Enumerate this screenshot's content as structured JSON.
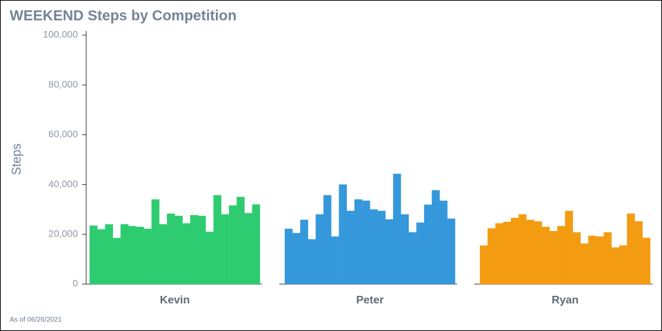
{
  "chart_data": {
    "type": "bar",
    "title": "WEEKEND Steps by Competition",
    "y_label": "Steps",
    "footnote": "As of 06/26/2021",
    "ylim": [
      0,
      100000
    ],
    "yticks": [
      0,
      {
        "value": 20000,
        "label": "20,000"
      },
      {
        "value": 40000,
        "label": "40,000"
      },
      {
        "value": 60000,
        "label": "60,000"
      },
      {
        "value": 80000,
        "label": "80,000"
      },
      {
        "value": 100000,
        "label": "100,000"
      }
    ],
    "series": [
      {
        "name": "Kevin",
        "color": "#2ecc71",
        "values": [
          23500,
          22000,
          24000,
          18500,
          24000,
          23300,
          23000,
          22200,
          34000,
          24000,
          28300,
          27400,
          24400,
          27700,
          27400,
          21000,
          35700,
          28000,
          31600,
          35000,
          28500,
          32000
        ]
      },
      {
        "name": "Peter",
        "color": "#3498db",
        "values": [
          22200,
          20500,
          25800,
          18000,
          28000,
          35700,
          19100,
          40000,
          29400,
          34000,
          33500,
          30000,
          29400,
          26000,
          44300,
          28000,
          20800,
          24700,
          31900,
          37700,
          33500,
          26300
        ]
      },
      {
        "name": "Ryan",
        "color": "#f39c12",
        "values": [
          15500,
          22400,
          24400,
          25000,
          26600,
          28000,
          25800,
          25200,
          23000,
          21300,
          23300,
          29400,
          20800,
          16300,
          19400,
          19100,
          20800,
          14700,
          15500,
          28300,
          25200,
          18600
        ]
      }
    ]
  }
}
